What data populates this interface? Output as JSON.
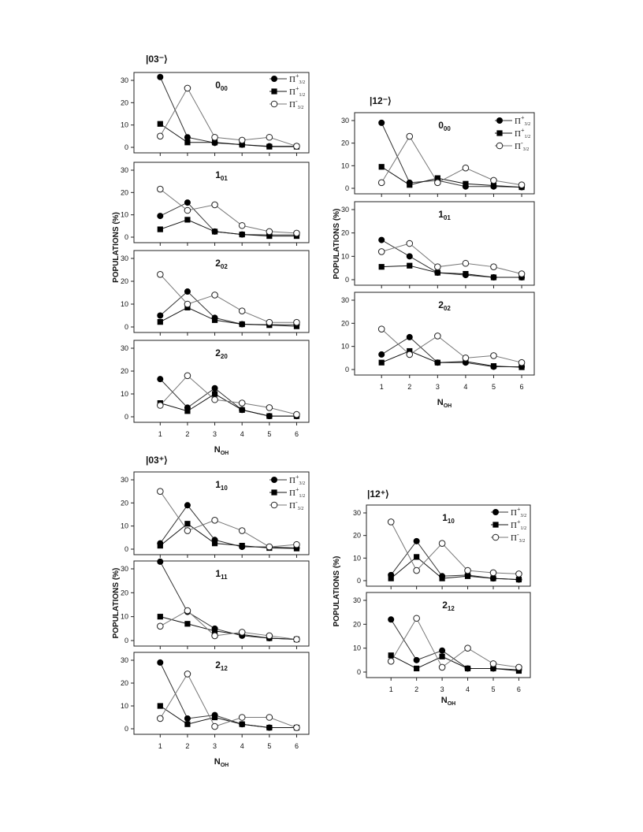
{
  "chart_data": [
    {
      "group_title": "|03⁻⟩",
      "x_label": "N",
      "x_label_sub": "OH",
      "y_label": "POPULATIONS (%)",
      "legend": [
        {
          "main": "Π",
          "sup": "+",
          "sub": "3/2",
          "marker": "filled-circle"
        },
        {
          "main": "Π",
          "sup": "+",
          "sub": "1/2",
          "marker": "filled-square"
        },
        {
          "main": "Π",
          "sup": "-",
          "sub": "3/2",
          "marker": "open-circle"
        }
      ],
      "panels": [
        {
          "type": "line",
          "state_main": "0",
          "state_sub": "00",
          "x": [
            1,
            2,
            3,
            4,
            5,
            6
          ],
          "ylim": [
            0,
            30
          ],
          "yticks": [
            0,
            10,
            20,
            30
          ],
          "series": [
            {
              "name": "Π+3/2",
              "marker": "filled-circle",
              "values": [
                31.5,
                4.5,
                2,
                1.2,
                0.5,
                0.5
              ]
            },
            {
              "name": "Π+1/2",
              "marker": "filled-square",
              "values": [
                10.5,
                2.2,
                2.2,
                1.2,
                0.3,
                0.3
              ]
            },
            {
              "name": "Π-3/2",
              "marker": "open-circle",
              "values": [
                5,
                26.5,
                4.5,
                3.2,
                4.5,
                0.5
              ]
            }
          ]
        },
        {
          "type": "line",
          "state_main": "1",
          "state_sub": "01",
          "x": [
            1,
            2,
            3,
            4,
            5,
            6
          ],
          "ylim": [
            0,
            30
          ],
          "yticks": [
            0,
            10,
            20,
            30
          ],
          "series": [
            {
              "name": "Π+3/2",
              "marker": "filled-circle",
              "values": [
                9.5,
                15.5,
                2.5,
                1.2,
                1,
                1
              ]
            },
            {
              "name": "Π+1/2",
              "marker": "filled-square",
              "values": [
                3.5,
                7.8,
                2.5,
                1.2,
                0.5,
                0.5
              ]
            },
            {
              "name": "Π-3/2",
              "marker": "open-circle",
              "values": [
                21.5,
                12,
                14.5,
                5.2,
                2.5,
                1.8
              ]
            }
          ]
        },
        {
          "type": "line",
          "state_main": "2",
          "state_sub": "02",
          "x": [
            1,
            2,
            3,
            4,
            5,
            6
          ],
          "ylim": [
            0,
            30
          ],
          "yticks": [
            0,
            10,
            20,
            30
          ],
          "series": [
            {
              "name": "Π+3/2",
              "marker": "filled-circle",
              "values": [
                5,
                15.5,
                4,
                1.2,
                1,
                1
              ]
            },
            {
              "name": "Π+1/2",
              "marker": "filled-square",
              "values": [
                2.2,
                8.5,
                3,
                1.2,
                0.8,
                0.3
              ]
            },
            {
              "name": "Π-3/2",
              "marker": "open-circle",
              "values": [
                23,
                10,
                14,
                7,
                2,
                2
              ]
            }
          ]
        },
        {
          "type": "line",
          "state_main": "2",
          "state_sub": "20",
          "x": [
            1,
            2,
            3,
            4,
            5,
            6
          ],
          "ylim": [
            0,
            30
          ],
          "yticks": [
            0,
            10,
            20,
            30
          ],
          "series": [
            {
              "name": "Π+3/2",
              "marker": "filled-circle",
              "values": [
                16.5,
                4,
                12.5,
                3,
                0.3,
                0.3
              ]
            },
            {
              "name": "Π+1/2",
              "marker": "filled-square",
              "values": [
                6,
                2.5,
                10,
                3,
                0.3,
                0.3
              ]
            },
            {
              "name": "Π-3/2",
              "marker": "open-circle",
              "values": [
                5,
                18,
                7.5,
                6,
                4,
                1
              ]
            }
          ]
        }
      ]
    },
    {
      "group_title": "|12⁻⟩",
      "x_label": "N",
      "x_label_sub": "OH",
      "y_label": "POPULATIONS (%)",
      "legend": [
        {
          "main": "Π",
          "sup": "+",
          "sub": "3/2",
          "marker": "filled-circle"
        },
        {
          "main": "Π",
          "sup": "+",
          "sub": "1/2",
          "marker": "filled-square"
        },
        {
          "main": "Π",
          "sup": "-",
          "sub": "3/2",
          "marker": "open-circle"
        }
      ],
      "panels": [
        {
          "type": "line",
          "state_main": "0",
          "state_sub": "00",
          "x": [
            1,
            2,
            3,
            4,
            5,
            6
          ],
          "ylim": [
            0,
            30
          ],
          "yticks": [
            0,
            10,
            20,
            30
          ],
          "series": [
            {
              "name": "Π+3/2",
              "marker": "filled-circle",
              "values": [
                29,
                2.5,
                3.5,
                0.8,
                0.8,
                0.5
              ]
            },
            {
              "name": "Π+1/2",
              "marker": "filled-square",
              "values": [
                9.5,
                1.5,
                4.5,
                2,
                1.2,
                0.5
              ]
            },
            {
              "name": "Π-3/2",
              "marker": "open-circle",
              "values": [
                2.5,
                23,
                2.5,
                9,
                3.5,
                1.5
              ]
            }
          ]
        },
        {
          "type": "line",
          "state_main": "1",
          "state_sub": "01",
          "x": [
            1,
            2,
            3,
            4,
            5,
            6
          ],
          "ylim": [
            0,
            30
          ],
          "yticks": [
            0,
            10,
            20,
            30
          ],
          "series": [
            {
              "name": "Π+3/2",
              "marker": "filled-circle",
              "values": [
                17,
                10,
                3,
                2,
                1,
                1
              ]
            },
            {
              "name": "Π+1/2",
              "marker": "filled-square",
              "values": [
                5.5,
                6,
                3,
                2.5,
                1,
                1
              ]
            },
            {
              "name": "Π-3/2",
              "marker": "open-circle",
              "values": [
                12,
                15.5,
                5.5,
                7,
                5.5,
                2.5
              ]
            }
          ]
        },
        {
          "type": "line",
          "state_main": "2",
          "state_sub": "02",
          "x": [
            1,
            2,
            3,
            4,
            5,
            6
          ],
          "ylim": [
            0,
            30
          ],
          "yticks": [
            0,
            10,
            20,
            30
          ],
          "series": [
            {
              "name": "Π+3/2",
              "marker": "filled-circle",
              "values": [
                6.5,
                14,
                3,
                3,
                1.2,
                1.2
              ]
            },
            {
              "name": "Π+1/2",
              "marker": "filled-square",
              "values": [
                3,
                8,
                3,
                3.5,
                1.5,
                1
              ]
            },
            {
              "name": "Π-3/2",
              "marker": "open-circle",
              "values": [
                17.5,
                6.5,
                14.5,
                5,
                6,
                3
              ]
            }
          ]
        }
      ]
    },
    {
      "group_title": "|03⁺⟩",
      "x_label": "N",
      "x_label_sub": "OH",
      "y_label": "POPULATIONS (%)",
      "legend": [
        {
          "main": "Π",
          "sup": "+",
          "sub": "3/2",
          "marker": "filled-circle"
        },
        {
          "main": "Π",
          "sup": "+",
          "sub": "1/2",
          "marker": "filled-square"
        },
        {
          "main": "Π",
          "sup": "-",
          "sub": "3/2",
          "marker": "open-circle"
        }
      ],
      "panels": [
        {
          "type": "line",
          "state_main": "1",
          "state_sub": "10",
          "x": [
            1,
            2,
            3,
            4,
            5,
            6
          ],
          "ylim": [
            0,
            30
          ],
          "yticks": [
            0,
            10,
            20,
            30
          ],
          "series": [
            {
              "name": "Π+3/2",
              "marker": "filled-circle",
              "values": [
                2.5,
                19,
                4,
                1,
                1,
                0.5
              ]
            },
            {
              "name": "Π+1/2",
              "marker": "filled-square",
              "values": [
                1.5,
                11,
                2.5,
                1.5,
                0.5,
                0.3
              ]
            },
            {
              "name": "Π-3/2",
              "marker": "open-circle",
              "values": [
                25,
                8,
                12.5,
                8,
                1,
                2
              ]
            }
          ]
        },
        {
          "type": "line",
          "state_main": "1",
          "state_sub": "11",
          "x": [
            1,
            2,
            3,
            4,
            5,
            6
          ],
          "ylim": [
            0,
            30
          ],
          "yticks": [
            0,
            10,
            20,
            30
          ],
          "series": [
            {
              "name": "Π+3/2",
              "marker": "filled-circle",
              "values": [
                33,
                12,
                5,
                2,
                1,
                0.5
              ]
            },
            {
              "name": "Π+1/2",
              "marker": "filled-square",
              "values": [
                10,
                7,
                4,
                2.5,
                1,
                0.5
              ]
            },
            {
              "name": "Π-3/2",
              "marker": "open-circle",
              "values": [
                6,
                12.5,
                2,
                3.5,
                2,
                0.5
              ]
            }
          ]
        },
        {
          "type": "line",
          "state_main": "2",
          "state_sub": "12",
          "x": [
            1,
            2,
            3,
            4,
            5,
            6
          ],
          "ylim": [
            0,
            30
          ],
          "yticks": [
            0,
            10,
            20,
            30
          ],
          "series": [
            {
              "name": "Π+3/2",
              "marker": "filled-circle",
              "values": [
                29,
                4.5,
                6,
                2,
                0.5,
                0.5
              ]
            },
            {
              "name": "Π+1/2",
              "marker": "filled-square",
              "values": [
                10,
                2,
                5,
                2,
                0.5,
                0.5
              ]
            },
            {
              "name": "Π-3/2",
              "marker": "open-circle",
              "values": [
                4.5,
                24,
                1,
                5,
                5,
                0.5
              ]
            }
          ]
        }
      ]
    },
    {
      "group_title": "|12⁺⟩",
      "x_label": "N",
      "x_label_sub": "OH",
      "y_label": "POPULATIONS (%)",
      "legend": [
        {
          "main": "Π",
          "sup": "+",
          "sub": "3/2",
          "marker": "filled-circle"
        },
        {
          "main": "Π",
          "sup": "+",
          "sub": "1/2",
          "marker": "filled-square"
        },
        {
          "main": "Π",
          "sup": "-",
          "sub": "3/2",
          "marker": "open-circle"
        }
      ],
      "panels": [
        {
          "type": "line",
          "state_main": "1",
          "state_sub": "10",
          "x": [
            1,
            2,
            3,
            4,
            5,
            6
          ],
          "ylim": [
            0,
            30
          ],
          "yticks": [
            0,
            10,
            20,
            30
          ],
          "series": [
            {
              "name": "Π+3/2",
              "marker": "filled-circle",
              "values": [
                2.5,
                17.5,
                2,
                2.5,
                1,
                0.5
              ]
            },
            {
              "name": "Π+1/2",
              "marker": "filled-square",
              "values": [
                1,
                10.5,
                1,
                2,
                1,
                0.5
              ]
            },
            {
              "name": "Π-3/2",
              "marker": "open-circle",
              "values": [
                26,
                4.5,
                16.5,
                4.5,
                3.5,
                3
              ]
            }
          ]
        },
        {
          "type": "line",
          "state_main": "2",
          "state_sub": "12",
          "x": [
            1,
            2,
            3,
            4,
            5,
            6
          ],
          "ylim": [
            0,
            30
          ],
          "yticks": [
            0,
            10,
            20,
            30
          ],
          "series": [
            {
              "name": "Π+3/2",
              "marker": "filled-circle",
              "values": [
                22,
                5,
                9,
                1.5,
                1.5,
                1
              ]
            },
            {
              "name": "Π+1/2",
              "marker": "filled-square",
              "values": [
                7,
                1.5,
                6.5,
                1.5,
                1.5,
                0.5
              ]
            },
            {
              "name": "Π-3/2",
              "marker": "open-circle",
              "values": [
                4.5,
                22.5,
                2,
                10,
                3.5,
                2
              ]
            }
          ]
        }
      ]
    }
  ]
}
